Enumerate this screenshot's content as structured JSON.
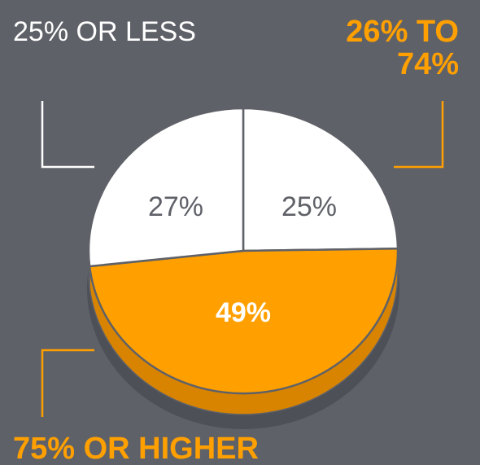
{
  "chart_data": {
    "type": "pie",
    "categories": [
      "25% OR LESS",
      "26% TO 74%",
      "75% OR HIGHER"
    ],
    "values": [
      27,
      25,
      49
    ],
    "value_labels": [
      "27%",
      "25%",
      "49%"
    ],
    "colors": [
      "#ffffff",
      "#ffffff",
      "#ffa000"
    ],
    "label_colors": [
      "#5f6168",
      "#5f6168",
      "#ffffff"
    ],
    "legend": "callouts"
  },
  "labels": {
    "top_left": "25% OR LESS",
    "top_right": "26% TO 74%",
    "bottom_left": "75% OR HIGHER"
  },
  "colors": {
    "background": "#5f6168",
    "accent": "#ffa000",
    "accent_dark": "#d98400",
    "shadow": "#4e5057",
    "white": "#ffffff"
  }
}
